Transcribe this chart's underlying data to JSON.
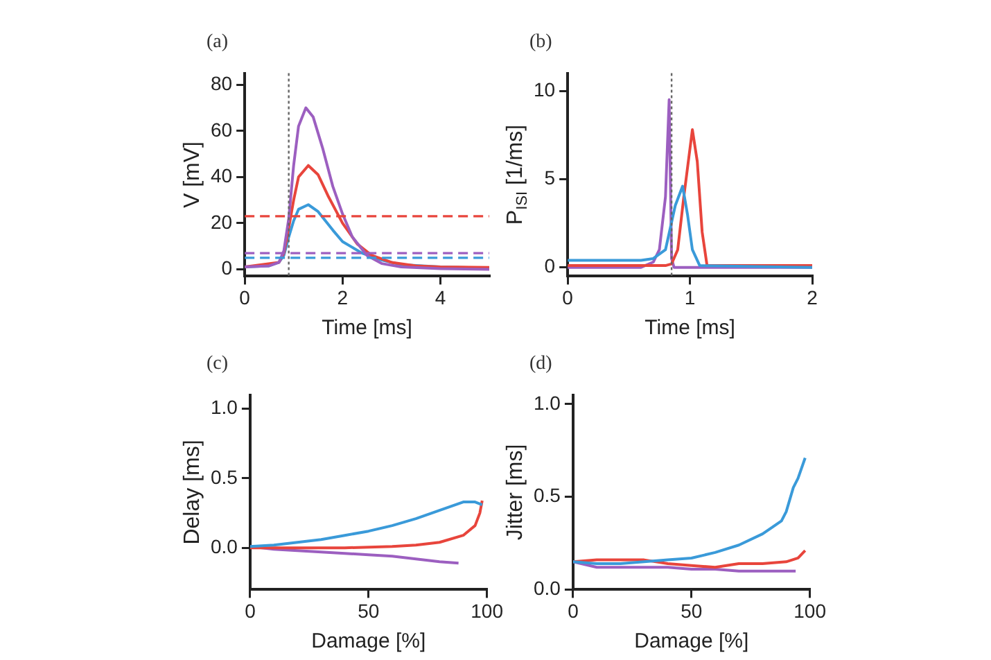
{
  "chart_data": [
    {
      "type": "line",
      "title": "(a)",
      "xlabel": "Time [ms]",
      "ylabel": "V [mV]",
      "xlim": [
        0,
        5
      ],
      "xticks": [
        0,
        2,
        4
      ],
      "ylim": [
        -3,
        85
      ],
      "yticks": [
        0,
        20,
        40,
        60,
        80
      ],
      "grid": false,
      "legend": false,
      "marker": "none",
      "ref_lines": [
        {
          "axis": "y",
          "value": 23,
          "color": "#e8453c",
          "line_style": "dashed"
        },
        {
          "axis": "y",
          "value": 7,
          "color": "#9c5fc0",
          "line_style": "dashed"
        },
        {
          "axis": "y",
          "value": 5,
          "color": "#3a9ad9",
          "line_style": "dashed"
        },
        {
          "axis": "x",
          "value": 0.9,
          "color": "#666666",
          "line_style": "dotted"
        }
      ],
      "series": [
        {
          "color": "#9c5fc0",
          "x": [
            0,
            0.5,
            0.7,
            0.8,
            0.9,
            1,
            1.1,
            1.25,
            1.4,
            1.6,
            1.8,
            2,
            2.2,
            2.5,
            2.8,
            3.2,
            4,
            5
          ],
          "values": [
            1,
            1.5,
            3,
            8,
            22,
            45,
            62,
            70,
            66,
            52,
            36,
            24,
            14,
            6,
            2.5,
            1,
            0.3,
            0
          ]
        },
        {
          "color": "#e8453c",
          "x": [
            0,
            0.7,
            0.8,
            0.9,
            1,
            1.1,
            1.3,
            1.5,
            1.7,
            2,
            2.3,
            2.6,
            3,
            3.5,
            4,
            5
          ],
          "values": [
            1,
            3,
            7,
            18,
            30,
            40,
            45,
            41,
            32,
            20,
            11,
            6,
            3,
            1.5,
            1,
            0.8
          ]
        },
        {
          "color": "#3a9ad9",
          "x": [
            0,
            0.5,
            0.7,
            0.8,
            0.9,
            1,
            1.1,
            1.3,
            1.5,
            1.8,
            2,
            2.4,
            2.8,
            3.2,
            4,
            5
          ],
          "values": [
            1,
            1.5,
            3,
            6,
            14,
            21,
            26,
            28,
            25,
            17,
            12,
            7,
            4,
            2,
            1,
            0.5
          ]
        }
      ]
    },
    {
      "type": "line",
      "title": "(b)",
      "xlabel": "Time [ms]",
      "ylabel": "P$_{ISI}$ [1/ms]",
      "xlim": [
        0,
        2
      ],
      "xticks": [
        0,
        1,
        2
      ],
      "ylim": [
        -0.5,
        11
      ],
      "yticks": [
        0,
        5,
        10
      ],
      "grid": false,
      "legend": false,
      "marker": "none",
      "ref_lines": [
        {
          "axis": "x",
          "value": 0.85,
          "color": "#666666",
          "line_style": "dotted"
        }
      ],
      "series": [
        {
          "color": "#3a9ad9",
          "x": [
            0,
            0.6,
            0.7,
            0.8,
            0.88,
            0.94,
            0.98,
            1.02,
            1.08,
            2
          ],
          "values": [
            0.4,
            0.4,
            0.5,
            1,
            3.5,
            4.6,
            3,
            1,
            0.1,
            0
          ]
        },
        {
          "color": "#e8453c",
          "x": [
            0,
            0.8,
            0.85,
            0.9,
            0.95,
            1.02,
            1.06,
            1.1,
            1.14,
            2
          ],
          "values": [
            0.1,
            0.1,
            0.2,
            1,
            4,
            7.8,
            6,
            2,
            0.1,
            0.1
          ]
        },
        {
          "color": "#9c5fc0",
          "x": [
            0,
            0.6,
            0.7,
            0.75,
            0.8,
            0.83,
            0.85,
            0.87,
            2
          ],
          "values": [
            0,
            0,
            0.3,
            1,
            4,
            9.5,
            0.5,
            0,
            0
          ]
        }
      ]
    },
    {
      "type": "line",
      "title": "(c)",
      "xlabel": "Damage [%]",
      "ylabel": "Delay [ms]",
      "xlim": [
        0,
        100
      ],
      "xticks": [
        0,
        50,
        100
      ],
      "ylim": [
        -0.3,
        1.1
      ],
      "yticks": [
        {
          "value": 0,
          "label": "0.0"
        },
        {
          "value": 0.5,
          "label": "0.5"
        },
        {
          "value": 1,
          "label": "1.0"
        }
      ],
      "grid": false,
      "legend": false,
      "marker": "none",
      "series": [
        {
          "color": "#3a9ad9",
          "x": [
            0,
            10,
            20,
            30,
            40,
            50,
            60,
            70,
            80,
            90,
            95,
            98
          ],
          "values": [
            0.01,
            0.02,
            0.04,
            0.06,
            0.09,
            0.12,
            0.16,
            0.21,
            0.27,
            0.33,
            0.33,
            0.31
          ]
        },
        {
          "color": "#e8453c",
          "x": [
            0,
            20,
            40,
            60,
            70,
            80,
            90,
            95,
            97,
            98
          ],
          "values": [
            0,
            0,
            0,
            0.01,
            0.02,
            0.04,
            0.09,
            0.16,
            0.25,
            0.34
          ]
        },
        {
          "color": "#9c5fc0",
          "x": [
            0,
            10,
            20,
            30,
            40,
            50,
            60,
            70,
            80,
            88
          ],
          "values": [
            0.01,
            -0.01,
            -0.02,
            -0.03,
            -0.04,
            -0.05,
            -0.06,
            -0.08,
            -0.1,
            -0.11
          ]
        }
      ]
    },
    {
      "type": "line",
      "title": "(d)",
      "xlabel": "Damage [%]",
      "ylabel": "Jitter [ms]",
      "xlim": [
        0,
        100
      ],
      "xticks": [
        0,
        50,
        100
      ],
      "ylim": [
        0,
        1.05
      ],
      "yticks": [
        {
          "value": 0,
          "label": "0.0"
        },
        {
          "value": 0.5,
          "label": "0.5"
        },
        {
          "value": 1,
          "label": "1.0"
        }
      ],
      "grid": false,
      "legend": false,
      "marker": "none",
      "series": [
        {
          "color": "#3a9ad9",
          "x": [
            0,
            10,
            20,
            30,
            40,
            50,
            60,
            70,
            80,
            88,
            90,
            93,
            95,
            98
          ],
          "values": [
            0.15,
            0.14,
            0.14,
            0.15,
            0.16,
            0.17,
            0.2,
            0.24,
            0.3,
            0.37,
            0.42,
            0.55,
            0.6,
            0.71
          ]
        },
        {
          "color": "#e8453c",
          "x": [
            0,
            10,
            30,
            40,
            50,
            60,
            70,
            80,
            90,
            95,
            98
          ],
          "values": [
            0.15,
            0.16,
            0.16,
            0.14,
            0.13,
            0.12,
            0.14,
            0.14,
            0.15,
            0.17,
            0.21
          ]
        },
        {
          "color": "#9c5fc0",
          "x": [
            0,
            10,
            20,
            30,
            40,
            50,
            60,
            70,
            80,
            94
          ],
          "values": [
            0.15,
            0.12,
            0.12,
            0.12,
            0.12,
            0.11,
            0.11,
            0.1,
            0.1,
            0.1
          ]
        }
      ]
    }
  ]
}
